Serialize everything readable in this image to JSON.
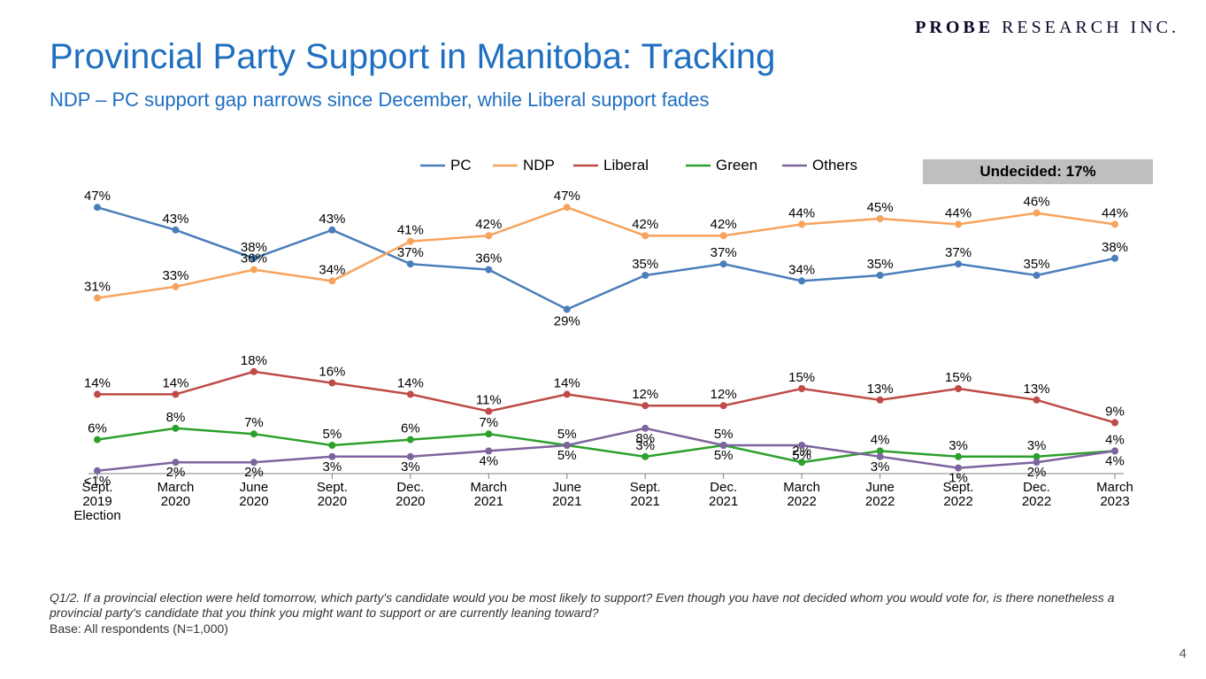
{
  "logo": {
    "bold": "PROBE",
    "light": " RESEARCH INC."
  },
  "title": "Provincial Party Support in Manitoba: Tracking",
  "subtitle": "NDP – PC support gap narrows since December, while Liberal support fades",
  "undecided_label": "Undecided: 17%",
  "page_number": "4",
  "footnote_q": "Q1/2. If a provincial election were held tomorrow, which party's candidate would you be most likely to support? Even though you have not decided whom you would vote for, is there nonetheless a provincial party's candidate that you think you might want to support or are currently leaning toward?",
  "footnote_base": "Base: All respondents (N=1,000)",
  "chart": {
    "type": "line",
    "x_labels": [
      "Sept.\n2019\nElection",
      "March\n2020",
      "June\n2020",
      "Sept.\n2020",
      "Dec.\n2020",
      "March\n2021",
      "June\n2021",
      "Sept.\n2021",
      "Dec.\n2021",
      "March\n2022",
      "June\n2022",
      "Sept.\n2022",
      "Dec.\n2022",
      "March\n2023"
    ],
    "ylim": [
      0,
      50
    ],
    "background_color": "#ffffff",
    "axis_color": "#808080",
    "label_fontsize": 15,
    "datalabel_fontsize": 15,
    "line_width": 2.5,
    "marker_size": 4,
    "series": [
      {
        "name": "PC",
        "color": "#4a7ebb",
        "values": [
          47,
          43,
          38,
          43,
          37,
          36,
          29,
          35,
          37,
          34,
          35,
          37,
          35,
          38
        ]
      },
      {
        "name": "NDP",
        "color": "#f7a35c",
        "values": [
          31,
          33,
          36,
          34,
          41,
          42,
          47,
          42,
          42,
          44,
          45,
          44,
          46,
          44
        ]
      },
      {
        "name": "Liberal",
        "color": "#be4b48",
        "values": [
          14,
          14,
          18,
          16,
          14,
          11,
          14,
          12,
          12,
          15,
          13,
          15,
          13,
          9
        ]
      },
      {
        "name": "Green",
        "color": "#2ca02c",
        "values": [
          6,
          8,
          7,
          5,
          6,
          7,
          5,
          3,
          5,
          2,
          4,
          3,
          3,
          4
        ]
      },
      {
        "name": "Others",
        "color": "#7e649e",
        "values": [
          0.5,
          2,
          2,
          3,
          3,
          4,
          5,
          8,
          5,
          5,
          3,
          1,
          2,
          4
        ]
      }
    ],
    "first_point_label_override": {
      "series": "Others",
      "text": "<1%"
    }
  }
}
